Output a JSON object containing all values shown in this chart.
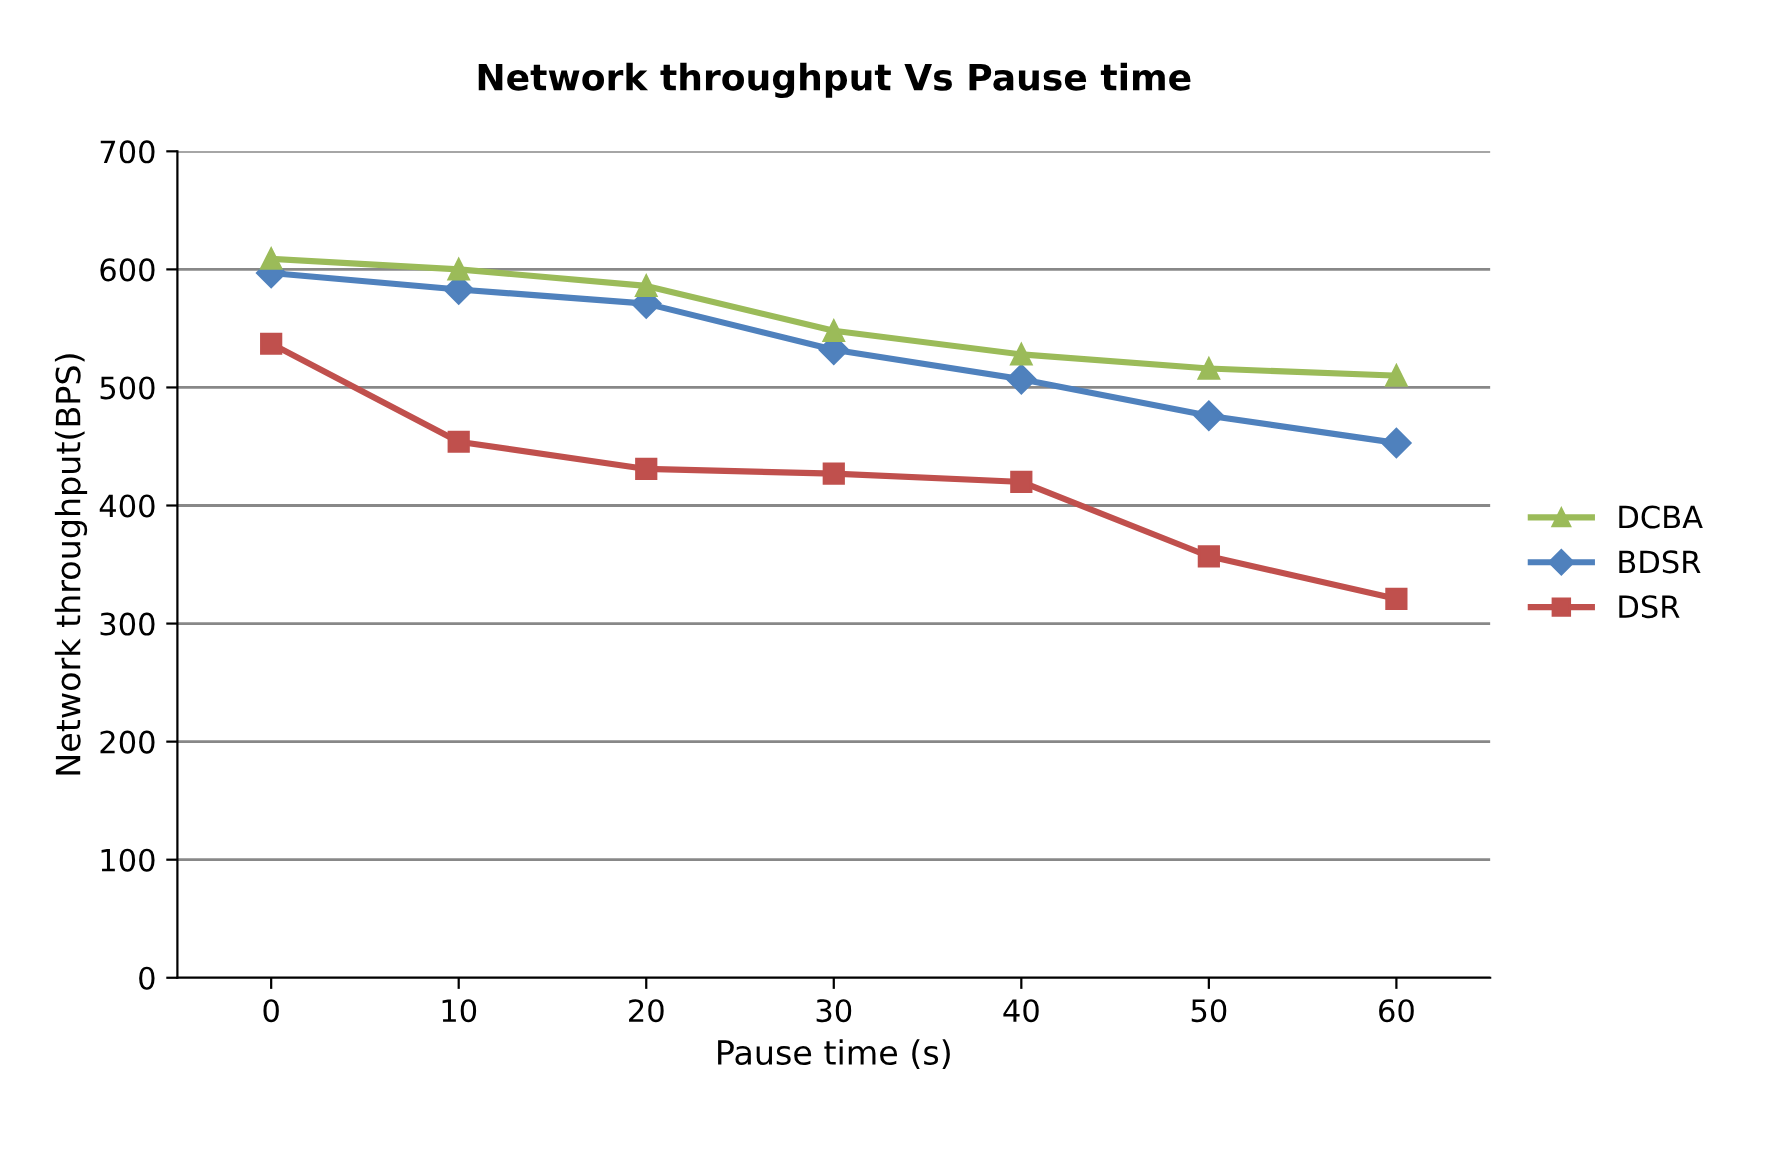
{
  "chart_data": {
    "type": "line",
    "title": "Network throughput Vs Pause time",
    "xlabel": "Pause time (s)",
    "ylabel": "Network throughput(BPS)",
    "categories": [
      "0",
      "10",
      "20",
      "30",
      "40",
      "50",
      "60"
    ],
    "series": [
      {
        "name": "DCBA",
        "color": "#9bbb59",
        "marker": "triangle",
        "values": [
          609,
          600,
          586,
          548,
          528,
          516,
          510
        ]
      },
      {
        "name": "BDSR",
        "color": "#4f81bd",
        "marker": "diamond",
        "values": [
          597,
          583,
          571,
          532,
          507,
          476,
          453
        ]
      },
      {
        "name": "DSR",
        "color": "#c0504d",
        "marker": "square",
        "values": [
          537,
          454,
          431,
          427,
          420,
          357,
          321
        ]
      }
    ],
    "ylim": [
      0,
      700
    ],
    "yticks": [
      0,
      100,
      200,
      300,
      400,
      500,
      600,
      700
    ],
    "grid": "y",
    "legend": "right",
    "line_style": "solid"
  }
}
